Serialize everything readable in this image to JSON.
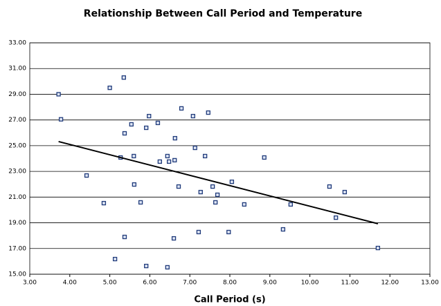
{
  "chart_data": {
    "type": "scatter",
    "title": "Relationship Between Call Period and Temperature",
    "x_label": "Call Period (s)",
    "series": [
      {
        "color": "#1f3a7a",
        "x": [
          3.72,
          3.78,
          4.42,
          4.85,
          5.0,
          5.35,
          5.37,
          5.54,
          5.27,
          5.6,
          5.61,
          5.77,
          5.37,
          5.13,
          5.91,
          5.91,
          5.98,
          6.2,
          6.25,
          6.44,
          6.48,
          6.62,
          6.63,
          6.79,
          6.72,
          6.44,
          6.6,
          7.08,
          7.13,
          7.46,
          7.38,
          7.27,
          7.57,
          7.69,
          7.64,
          7.22,
          8.05,
          7.97,
          8.36,
          8.86,
          9.33,
          9.52,
          10.49,
          10.87,
          10.65,
          11.7
        ],
        "values": [
          29.0,
          27.05,
          22.68,
          20.53,
          29.5,
          30.3,
          25.96,
          26.66,
          24.08,
          24.19,
          21.98,
          20.59,
          17.9,
          16.18,
          15.64,
          26.39,
          27.3,
          26.77,
          23.76,
          24.19,
          23.76,
          23.87,
          25.58,
          27.9,
          21.82,
          15.54,
          17.79,
          27.3,
          24.83,
          27.57,
          24.19,
          21.39,
          21.82,
          21.18,
          20.59,
          18.28,
          22.19,
          18.28,
          20.43,
          24.08,
          18.49,
          20.43,
          21.82,
          21.39,
          19.4,
          17.04
        ]
      }
    ],
    "trendline": {
      "x": [
        3.72,
        11.7
      ],
      "values": [
        25.32,
        18.93
      ],
      "color": "#000000"
    },
    "xlim": [
      3,
      13
    ],
    "ylim": [
      15,
      33
    ],
    "xticks": [
      {
        "value": 3,
        "label": "3.00"
      },
      {
        "value": 4,
        "label": "4.00"
      },
      {
        "value": 5,
        "label": "5.00"
      },
      {
        "value": 6,
        "label": "6.00"
      },
      {
        "value": 7,
        "label": "7.00"
      },
      {
        "value": 8,
        "label": "8.00"
      },
      {
        "value": 9,
        "label": "9.00"
      },
      {
        "value": 10,
        "label": "10.00"
      },
      {
        "value": 11,
        "label": "11.00"
      },
      {
        "value": 12,
        "label": "12.00"
      },
      {
        "value": 13,
        "label": "13.00"
      }
    ],
    "yticks": [
      {
        "value": 15,
        "label": "15.00"
      },
      {
        "value": 17,
        "label": "17.00"
      },
      {
        "value": 19,
        "label": "19.00"
      },
      {
        "value": 21,
        "label": "21.00"
      },
      {
        "value": 23,
        "label": "23.00"
      },
      {
        "value": 25,
        "label": "25.00"
      },
      {
        "value": 27,
        "label": "27.00"
      },
      {
        "value": 29,
        "label": "29.00"
      },
      {
        "value": 31,
        "label": "31.00"
      },
      {
        "value": 33,
        "label": "33.00"
      }
    ],
    "grid": true
  }
}
